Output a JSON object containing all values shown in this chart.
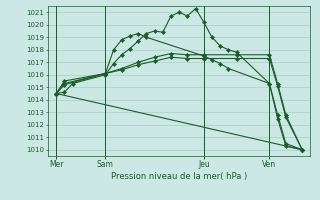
{
  "background_color": "#cce8e4",
  "grid_color": "#aaccc8",
  "line_color": "#1a5c2a",
  "xlabel": "Pression niveau de la mer( hPa )",
  "ylim": [
    1009.5,
    1021.5
  ],
  "yticks": [
    1010,
    1011,
    1012,
    1013,
    1014,
    1015,
    1016,
    1017,
    1018,
    1019,
    1020,
    1021
  ],
  "day_labels": [
    "Mer",
    "Sam",
    "Jeu",
    "Ven"
  ],
  "day_positions": [
    0,
    6,
    18,
    26
  ],
  "xlim": [
    -1,
    31
  ],
  "series1_x": [
    0,
    1,
    2,
    6,
    7,
    8,
    9,
    10,
    11,
    12,
    13,
    14,
    15,
    16,
    17,
    18,
    19,
    20,
    21,
    22,
    26,
    27,
    28,
    30
  ],
  "series1_y": [
    1014.5,
    1014.6,
    1015.3,
    1016.0,
    1016.9,
    1017.6,
    1018.1,
    1018.7,
    1019.3,
    1019.5,
    1019.4,
    1020.7,
    1021.0,
    1020.7,
    1021.3,
    1020.2,
    1019.0,
    1018.3,
    1018.0,
    1017.8,
    1015.3,
    1012.5,
    1010.3,
    1010.0
  ],
  "series2_x": [
    0,
    1,
    6,
    8,
    10,
    12,
    14,
    16,
    18,
    22,
    26,
    27,
    28,
    30
  ],
  "series2_y": [
    1014.5,
    1015.3,
    1016.1,
    1016.5,
    1017.0,
    1017.4,
    1017.7,
    1017.6,
    1017.6,
    1017.6,
    1017.6,
    1015.3,
    1012.8,
    1010.0
  ],
  "series3_x": [
    0,
    1,
    6,
    8,
    10,
    12,
    14,
    16,
    18,
    22,
    26,
    27,
    28,
    30
  ],
  "series3_y": [
    1014.5,
    1015.5,
    1016.1,
    1016.4,
    1016.8,
    1017.1,
    1017.4,
    1017.3,
    1017.3,
    1017.3,
    1017.3,
    1015.1,
    1012.6,
    1010.0
  ],
  "series4_x": [
    0,
    30
  ],
  "series4_y": [
    1014.5,
    1010.0
  ],
  "series5_x": [
    0,
    1,
    6,
    7,
    8,
    9,
    10,
    11,
    18,
    19,
    20,
    21,
    26,
    27,
    28,
    30
  ],
  "series5_y": [
    1014.5,
    1015.2,
    1016.1,
    1018.0,
    1018.8,
    1019.1,
    1019.3,
    1019.0,
    1017.5,
    1017.2,
    1016.9,
    1016.5,
    1015.3,
    1012.8,
    1010.5,
    1010.0
  ]
}
